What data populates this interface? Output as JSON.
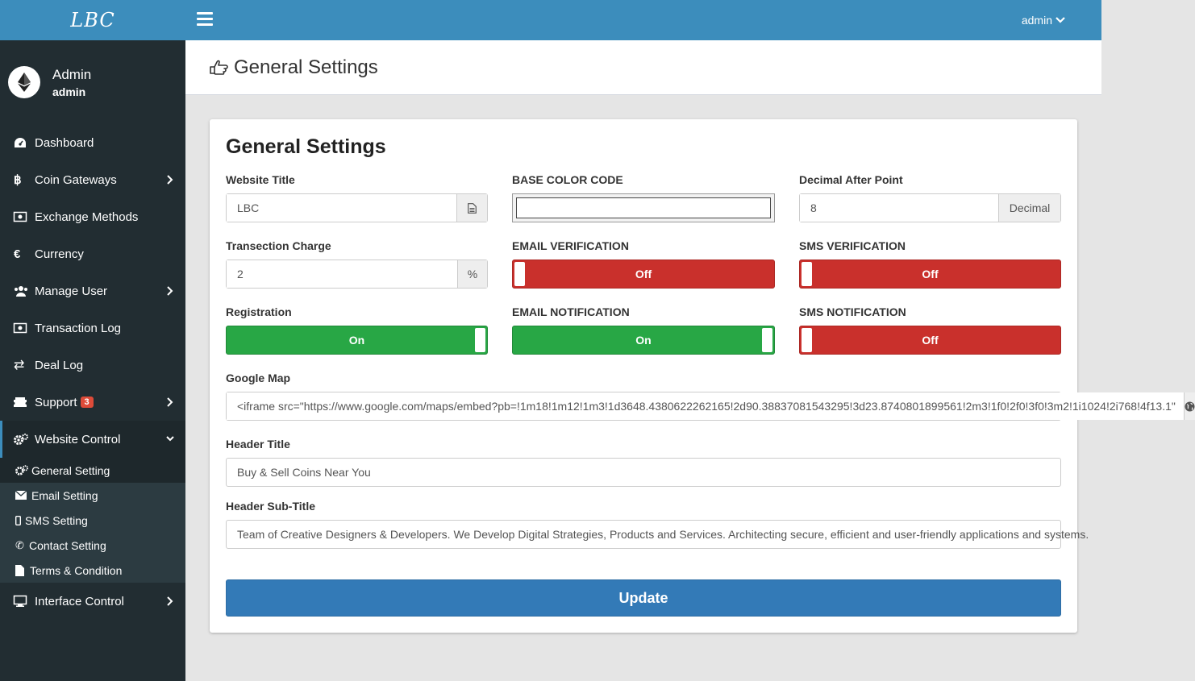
{
  "brand": {
    "logo_text": "LBC"
  },
  "user": {
    "name": "Admin",
    "role": "admin"
  },
  "sidebar": {
    "items": [
      {
        "label": "Dashboard"
      },
      {
        "label": "Coin Gateways"
      },
      {
        "label": "Exchange Methods"
      },
      {
        "label": "Currency"
      },
      {
        "label": "Manage User"
      },
      {
        "label": "Transaction Log"
      },
      {
        "label": "Deal Log"
      },
      {
        "label": "Support",
        "badge": "3"
      },
      {
        "label": "Website Control"
      },
      {
        "label": "Interface Control"
      }
    ],
    "submenu": [
      {
        "label": "General Setting"
      },
      {
        "label": "Email Setting"
      },
      {
        "label": "SMS Setting"
      },
      {
        "label": "Contact Setting"
      },
      {
        "label": "Terms & Condition"
      }
    ]
  },
  "topbar": {
    "account_label": "admin"
  },
  "page": {
    "title": "General Settings"
  },
  "form": {
    "title": "General Settings",
    "website_title": {
      "label": "Website Title",
      "value": "LBC"
    },
    "base_color": {
      "label": "BASE COLOR CODE",
      "value": "#ffffff"
    },
    "decimal": {
      "label": "Decimal After Point",
      "value": "8",
      "addon": "Decimal"
    },
    "charge": {
      "label": "Transection Charge",
      "value": "2",
      "addon": "%"
    },
    "email_verification": {
      "label": "EMAIL VERIFICATION",
      "state": "Off"
    },
    "sms_verification": {
      "label": "SMS VERIFICATION",
      "state": "Off"
    },
    "registration": {
      "label": "Registration",
      "state": "On"
    },
    "email_notification": {
      "label": "EMAIL NOTIFICATION",
      "state": "On"
    },
    "sms_notification": {
      "label": "SMS NOTIFICATION",
      "state": "Off"
    },
    "google_map": {
      "label": "Google Map",
      "value": "<iframe src=\"https://www.google.com/maps/embed?pb=!1m18!1m12!1m3!1d3648.4380622262165!2d90.38837081543295!3d23.8740801899561!2m3!1f0!2f0!3f0!3m2!1i1024!2i768!4f13.1\""
    },
    "header_title": {
      "label": "Header Title",
      "value": "Buy & Sell Coins Near You"
    },
    "header_subtitle": {
      "label": "Header Sub-Title",
      "value": "Team of Creative Designers & Developers. We Develop Digital Strategies, Products and Services. Architecting secure, efficient and user-friendly applications and systems."
    },
    "update_label": "Update"
  },
  "colors": {
    "primary": "#3c8dbc",
    "sidebar": "#222d32",
    "on": "#28a745",
    "off": "#c9302c",
    "button": "#337ab7"
  }
}
